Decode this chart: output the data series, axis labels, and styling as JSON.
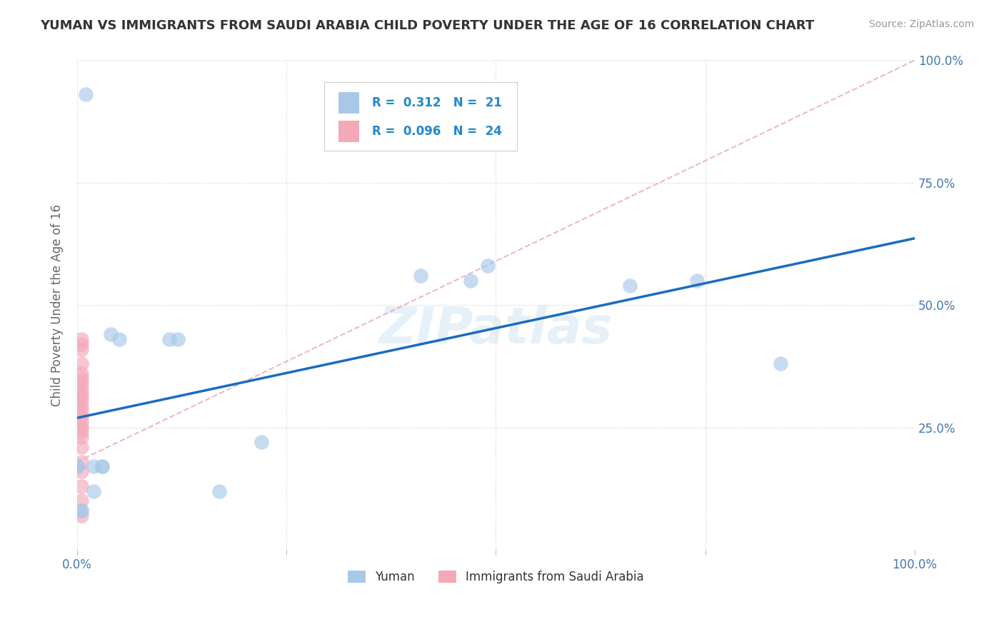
{
  "title": "YUMAN VS IMMIGRANTS FROM SAUDI ARABIA CHILD POVERTY UNDER THE AGE OF 16 CORRELATION CHART",
  "source": "Source: ZipAtlas.com",
  "ylabel": "Child Poverty Under the Age of 16",
  "yuman_r": 0.312,
  "yuman_n": 21,
  "saudi_r": 0.096,
  "saudi_n": 24,
  "yuman_color": "#a8c8e8",
  "saudi_color": "#f4a8b8",
  "yuman_trend_color": "#1a6bbf",
  "saudi_trend_color": "#e8a0b8",
  "watermark": "ZIPatlas",
  "xlim": [
    0.0,
    1.0
  ],
  "ylim": [
    0.0,
    1.0
  ],
  "yuman_x": [
    0.01,
    0.04,
    0.05,
    0.49,
    0.41,
    0.47,
    0.66,
    0.74,
    0.84,
    0.11,
    0.12,
    0.22,
    0.02,
    0.03,
    0.03,
    0.17,
    0.02,
    0.0,
    0.0,
    0.005,
    0.005
  ],
  "yuman_y": [
    0.93,
    0.44,
    0.43,
    0.58,
    0.56,
    0.55,
    0.54,
    0.55,
    0.38,
    0.43,
    0.43,
    0.22,
    0.17,
    0.17,
    0.17,
    0.12,
    0.12,
    0.17,
    0.17,
    0.08,
    0.08
  ],
  "saudi_x": [
    0.005,
    0.005,
    0.005,
    0.005,
    0.005,
    0.005,
    0.005,
    0.005,
    0.005,
    0.005,
    0.005,
    0.005,
    0.005,
    0.005,
    0.005,
    0.005,
    0.005,
    0.005,
    0.005,
    0.005,
    0.005,
    0.005,
    0.005,
    0.005
  ],
  "saudi_y": [
    0.43,
    0.42,
    0.41,
    0.38,
    0.36,
    0.35,
    0.34,
    0.33,
    0.32,
    0.31,
    0.3,
    0.29,
    0.28,
    0.27,
    0.26,
    0.25,
    0.24,
    0.23,
    0.21,
    0.18,
    0.16,
    0.13,
    0.1,
    0.07
  ],
  "saudi_trend_x0": 0.0,
  "saudi_trend_y0": 0.18,
  "saudi_trend_x1": 1.0,
  "saudi_trend_y1": 1.0,
  "yuman_trend_x0": 0.0,
  "yuman_trend_y0": 0.38,
  "yuman_trend_x1": 1.0,
  "yuman_trend_y1": 0.65
}
